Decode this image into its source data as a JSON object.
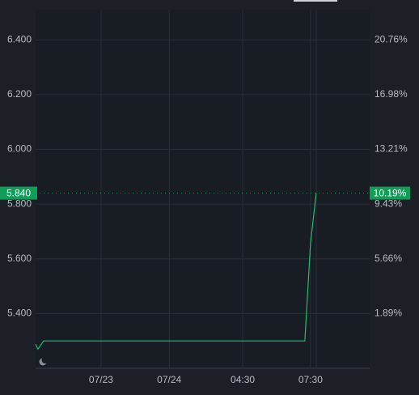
{
  "chart_data": {
    "type": "line",
    "x": [
      0,
      0.7,
      2.4,
      80.6,
      82.3,
      84.0
    ],
    "xlim": [
      0,
      100
    ],
    "xticks": [
      {
        "value": 19.6,
        "label": "07/23"
      },
      {
        "value": 40.0,
        "label": "07/24"
      },
      {
        "value": 62.0,
        "label": "04:30"
      },
      {
        "value": 82.3,
        "label": "07:30"
      }
    ],
    "series": [
      {
        "color": "#1fbf6e",
        "values": [
          5.288,
          5.27,
          5.3,
          5.3,
          5.657,
          5.84
        ]
      }
    ],
    "ylim": [
      5.2,
      6.51
    ],
    "yticks": [
      {
        "value": 5.4,
        "label": "5.400"
      },
      {
        "value": 5.6,
        "label": "5.600"
      },
      {
        "value": 5.8,
        "label": "5.800"
      },
      {
        "value": 6.0,
        "label": "6.000"
      },
      {
        "value": 6.2,
        "label": "6.200"
      },
      {
        "value": 6.4,
        "label": "6.400"
      }
    ],
    "y2lim": [
      -1.89,
      22.83
    ],
    "y2ticks": [
      {
        "value": 1.89,
        "label": "1.89%"
      },
      {
        "value": 5.66,
        "label": "5.66%"
      },
      {
        "value": 9.43,
        "label": "9.43%"
      },
      {
        "value": 13.21,
        "label": "13.21%"
      },
      {
        "value": 16.98,
        "label": "16.98%"
      },
      {
        "value": 20.76,
        "label": "20.76%"
      }
    ],
    "last_price": {
      "value": 5.84,
      "label": "5.840"
    },
    "last_change": {
      "value": 10.19,
      "label": "10.19%"
    },
    "grid": true,
    "marker_color": "#0f9d58"
  }
}
